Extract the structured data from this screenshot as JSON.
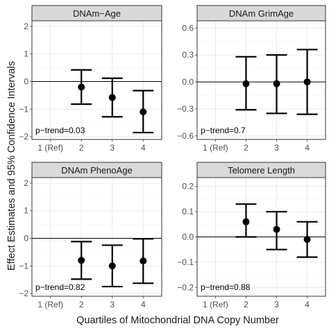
{
  "figure": {
    "ylabel": "Effect Estimates and 95% Confidence Intervals",
    "xlabel": "Quartiles of Mitochondrial DNA Copy Number"
  },
  "colors": {
    "strip_fill": "#d9d9d9",
    "strip_border": "#333333",
    "panel_border": "#333333",
    "grid_major": "#ebebeb",
    "grid_minor": "#f5f5f5",
    "axis_text": "#4d4d4d",
    "marks": "#000000"
  },
  "chart_data": [
    {
      "type": "scatter",
      "title": "DNAm−Age",
      "categories": [
        "1 (Ref)",
        "2",
        "3",
        "4"
      ],
      "ylim": [
        -2.1,
        2.2
      ],
      "yticks": [
        -2,
        -1,
        0,
        1,
        2
      ],
      "ytick_labels": [
        "−2",
        "−1",
        "0",
        "1",
        "2"
      ],
      "estimates": [
        null,
        -0.2,
        -0.58,
        -1.1
      ],
      "lower": [
        null,
        -0.82,
        -1.28,
        -1.85
      ],
      "upper": [
        null,
        0.42,
        0.12,
        -0.33
      ],
      "reference_line": 0,
      "annotation": "p−trend=0.03",
      "grid": true
    },
    {
      "type": "scatter",
      "title": "DNAm GrimAge",
      "categories": [
        "1 (Ref)",
        "2",
        "3",
        "4"
      ],
      "ylim": [
        -0.64,
        0.68
      ],
      "yticks": [
        -0.6,
        -0.3,
        0.0,
        0.3,
        0.6
      ],
      "ytick_labels": [
        "−0.6",
        "−0.3",
        "0.0",
        "0.3",
        "0.6"
      ],
      "estimates": [
        null,
        -0.02,
        -0.02,
        0.0
      ],
      "lower": [
        null,
        -0.31,
        -0.35,
        -0.36
      ],
      "upper": [
        null,
        0.28,
        0.3,
        0.36
      ],
      "reference_line": 0,
      "annotation": "p−trend=0.7",
      "grid": true
    },
    {
      "type": "scatter",
      "title": "DNAm PhenoAge",
      "categories": [
        "1 (Ref)",
        "2",
        "3",
        "4"
      ],
      "ylim": [
        -2.1,
        2.2
      ],
      "yticks": [
        -2,
        -1,
        0,
        1,
        2
      ],
      "ytick_labels": [
        "−2",
        "−1",
        "0",
        "1",
        "2"
      ],
      "estimates": [
        null,
        -0.8,
        -1.0,
        -0.82
      ],
      "lower": [
        null,
        -1.48,
        -1.75,
        -1.63
      ],
      "upper": [
        null,
        -0.12,
        -0.25,
        -0.02
      ],
      "reference_line": 0,
      "annotation": "p−trend=0.82",
      "grid": true
    },
    {
      "type": "scatter",
      "title": "Telomere Length",
      "categories": [
        "1 (Ref)",
        "2",
        "3",
        "4"
      ],
      "ylim": [
        -0.235,
        0.235
      ],
      "yticks": [
        -0.2,
        -0.1,
        0.0,
        0.1,
        0.2
      ],
      "ytick_labels": [
        "−0.2",
        "−0.1",
        "0.0",
        "0.1",
        "0.2"
      ],
      "estimates": [
        null,
        0.06,
        0.03,
        -0.01
      ],
      "lower": [
        null,
        0.0,
        -0.05,
        -0.08
      ],
      "upper": [
        null,
        0.13,
        0.1,
        0.06
      ],
      "reference_line": 0,
      "annotation": "p−trend=0.88",
      "grid": true
    }
  ]
}
